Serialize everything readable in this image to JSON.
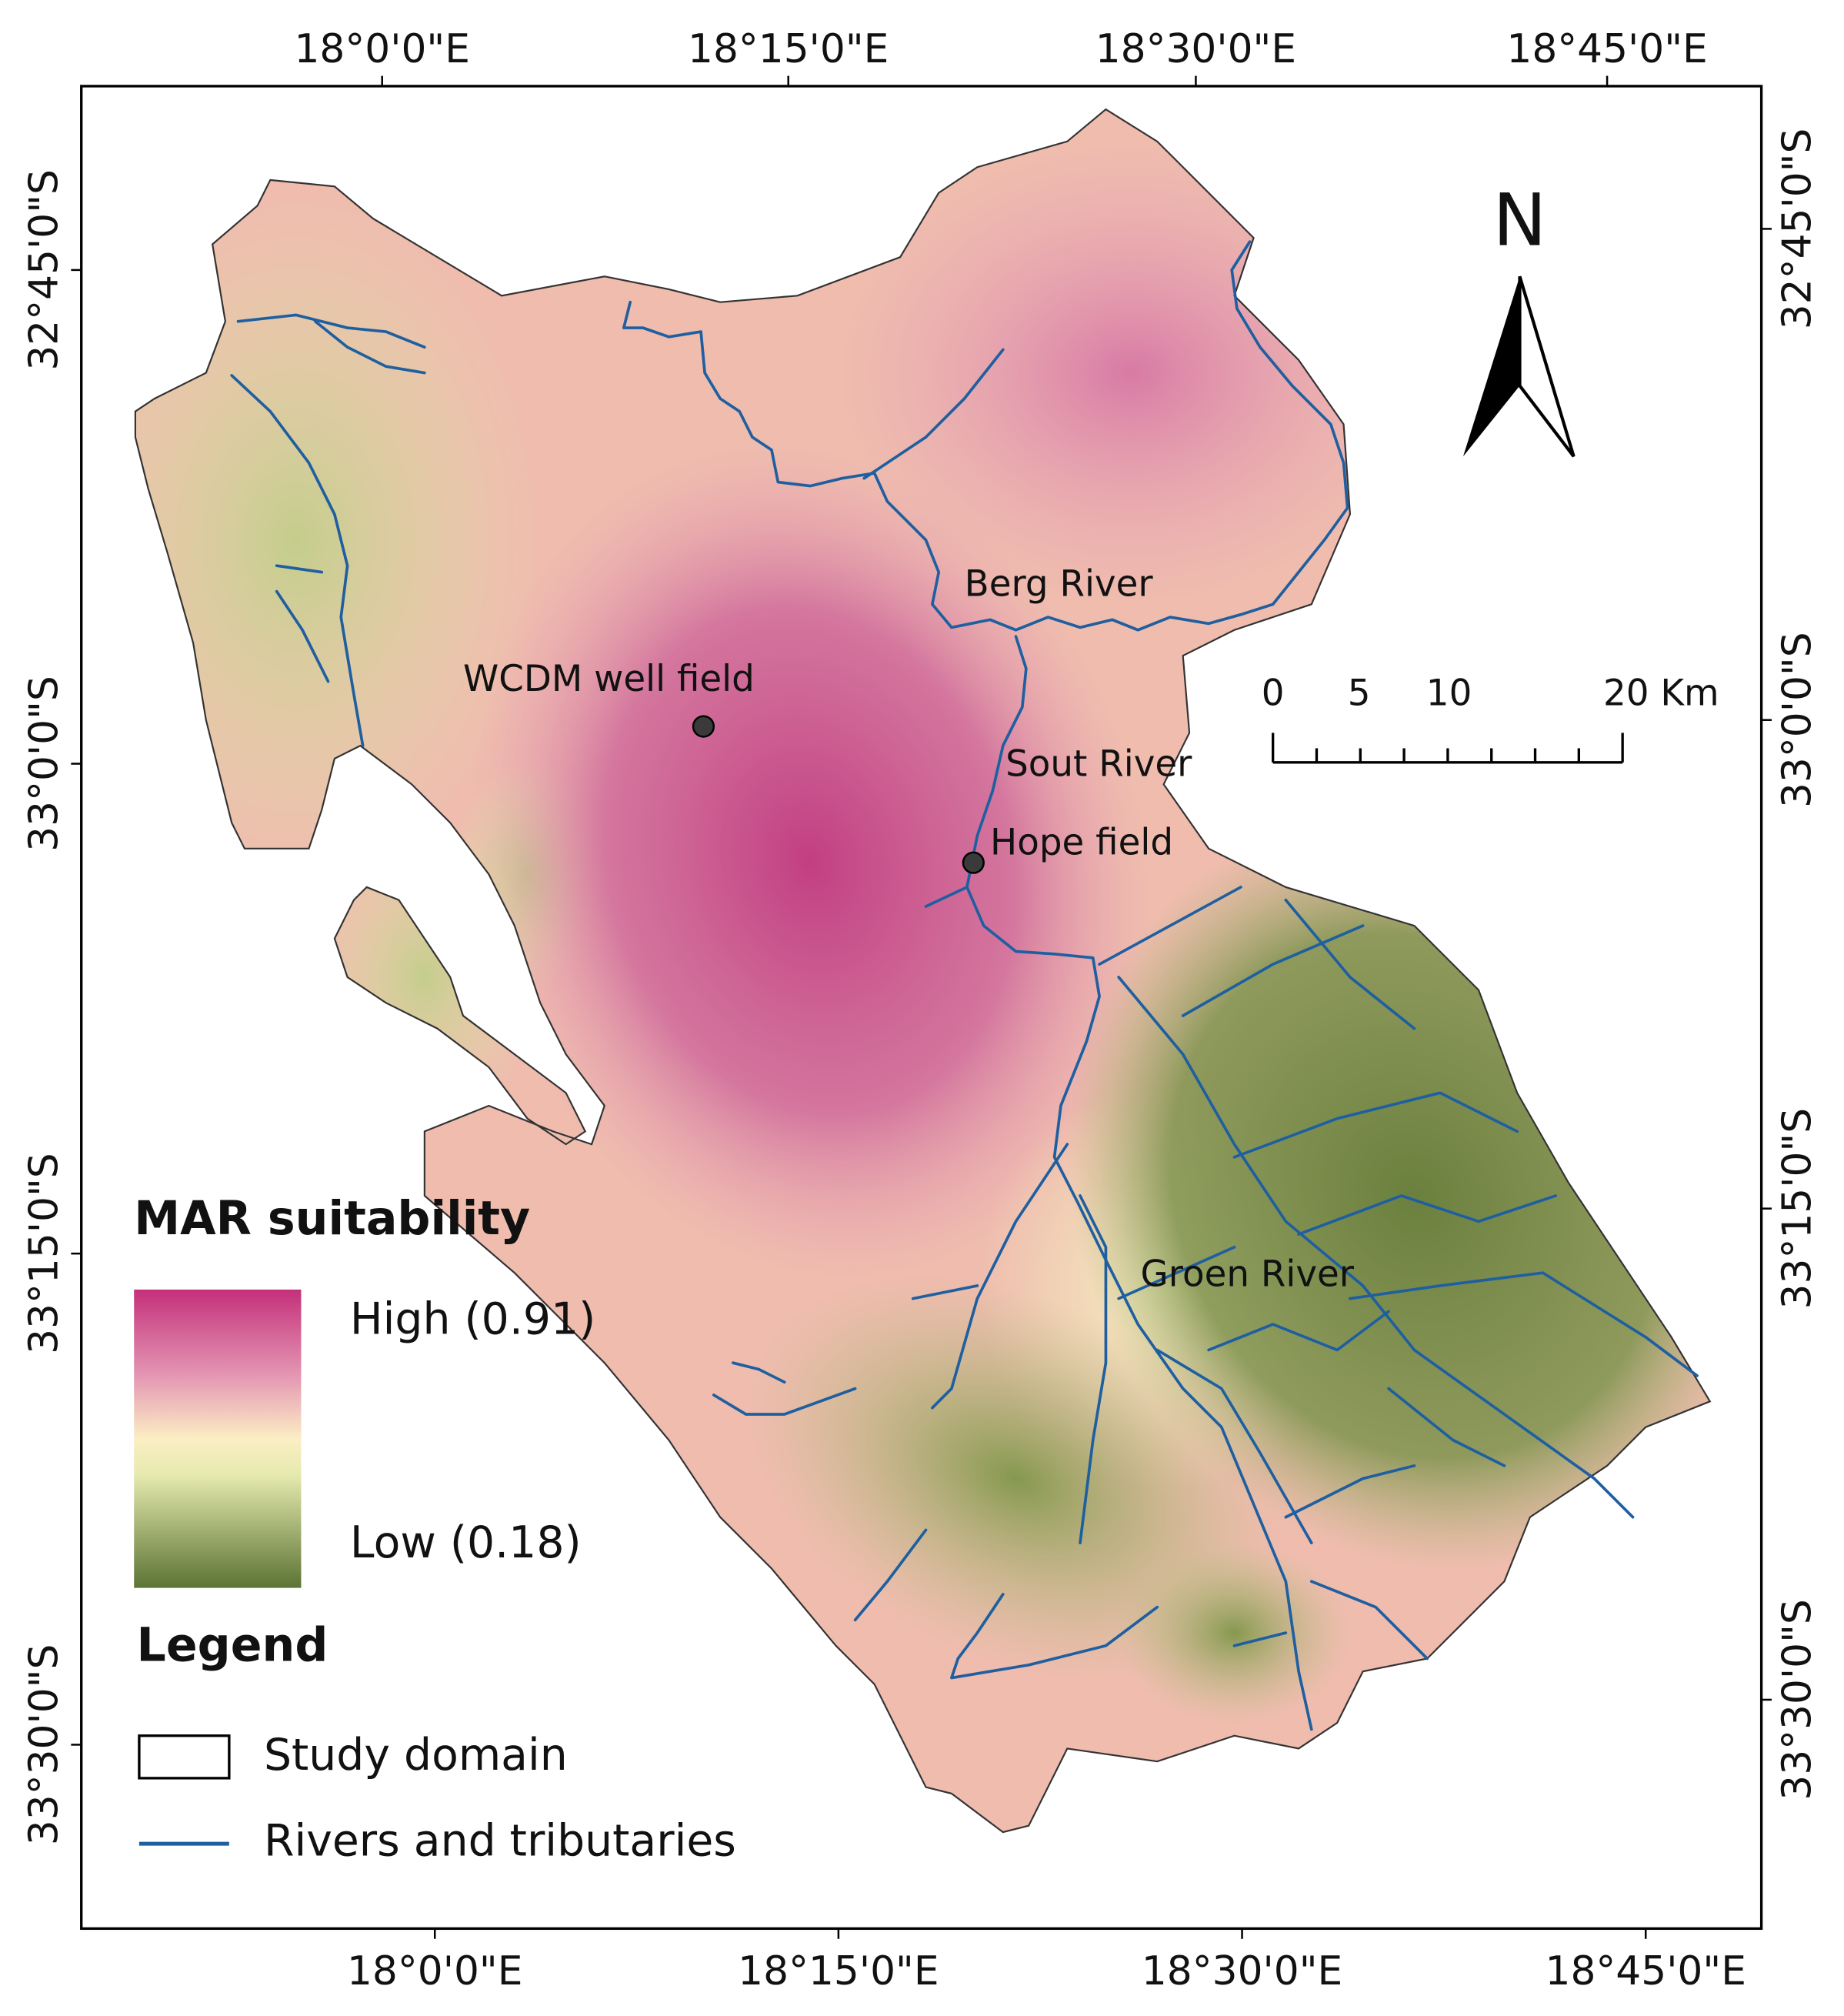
{
  "map": {
    "top_longitudes": [
      "18°0'0\"E",
      "18°15'0\"E",
      "18°30'0\"E",
      "18°45'0\"E"
    ],
    "bottom_longitudes": [
      "18°0'0\"E",
      "18°15'0\"E",
      "18°30'0\"E",
      "18°45'0\"E"
    ],
    "left_latitudes": [
      "32°45'0\"S",
      "33°0'0\"S",
      "33°15'0\"S",
      "33°30'0\"S"
    ],
    "right_latitudes": [
      "32°45'0\"S",
      "33°0'0\"S",
      "33°15'0\"S",
      "33°30'0\"S"
    ],
    "places": [
      "Berg River",
      "WCDM well field",
      "Sout River",
      "Hope field",
      "Groen River"
    ],
    "north": "N",
    "scale_bar": [
      "0",
      "5",
      "10",
      "20 Km"
    ],
    "legend": {
      "suitability_title": "MAR suitability",
      "high": "High (0.91)",
      "low": "Low (0.18)",
      "title": "Legend",
      "items": [
        "Study domain",
        "Rivers and tributaries"
      ]
    }
  }
}
